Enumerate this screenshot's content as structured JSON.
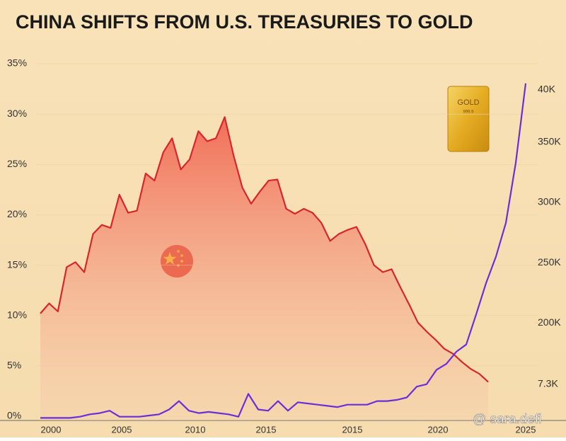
{
  "chart_data": {
    "type": "line",
    "title": "CHINA SHIFTS FROM U.S. TREASURIES TO GOLD",
    "x_labels": [
      "2000",
      "2005",
      "2010",
      "2015",
      "2015",
      "2020",
      "2025"
    ],
    "ylim": [
      0,
      35
    ],
    "yticks": [
      {
        "value": 0,
        "label": "0%"
      },
      {
        "value": 5,
        "label": "5%"
      },
      {
        "value": 10,
        "label": "10%"
      },
      {
        "value": 15,
        "label": "15%"
      },
      {
        "value": 20,
        "label": "20%"
      },
      {
        "value": 25,
        "label": "25%"
      },
      {
        "value": 30,
        "label": "30%"
      },
      {
        "value": 35,
        "label": "35%"
      }
    ],
    "y2lim": [
      122400,
      415300
    ],
    "y2ticks": [
      {
        "value": 200000,
        "label": "200K"
      },
      {
        "value": 250000,
        "label": "250K"
      },
      {
        "value": 300000,
        "label": "300K"
      },
      {
        "value": 350000,
        "label": "350K"
      }
    ],
    "y2_extra_labels": [
      "7.3K",
      "40K"
    ],
    "series": [
      {
        "color": "#d8262a",
        "area": true,
        "values": [
          10.2,
          11.2,
          10.4,
          14.8,
          15.3,
          14.3,
          18.1,
          19.0,
          18.7,
          22.0,
          20.2,
          20.4,
          24.1,
          23.4,
          26.2,
          27.6,
          24.5,
          25.5,
          28.3,
          27.3,
          27.6,
          29.7,
          25.9,
          22.7,
          21.1,
          22.3,
          23.4,
          23.5,
          20.6,
          20.1,
          20.6,
          20.2,
          19.2,
          17.4,
          18.1,
          18.5,
          18.8,
          17.1,
          15.0,
          14.3,
          14.6,
          12.8,
          11.1,
          9.3,
          8.4,
          7.6,
          6.7,
          6.2,
          5.4,
          4.7,
          4.2,
          3.4
        ]
      },
      {
        "color": "#6a2fd8",
        "axis": "y2",
        "values": [
          121000,
          121000,
          121000,
          121000,
          122000,
          124000,
          125000,
          127000,
          122000,
          122000,
          122000,
          123000,
          124000,
          128000,
          135000,
          127000,
          125000,
          126000,
          125000,
          124000,
          122000,
          141000,
          128000,
          127000,
          135000,
          127000,
          134000,
          133000,
          132000,
          131000,
          130000,
          132000,
          132000,
          132000,
          135000,
          135000,
          136000,
          138000,
          147000,
          149000,
          161000,
          166000,
          176000,
          182000,
          207000,
          233000,
          255000,
          283000,
          333000,
          399000
        ]
      }
    ],
    "gold_bar": {
      "label": "GOLD",
      "purity": "999.9"
    },
    "watermark": "@ sara.defi"
  }
}
